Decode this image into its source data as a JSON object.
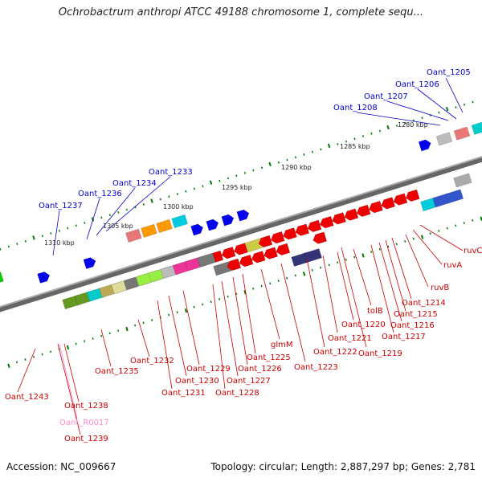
{
  "title": "Ochrobactrum anthropi ATCC 49188 chromosome 1, complete sequ...",
  "footer": {
    "accession": "Accession: NC_009667",
    "summary": "Topology: circular; Length: 2,887,297 bp; Genes: 2,781"
  },
  "colors": {
    "forward_label": "#0000cc",
    "reverse_label": "#cc0000",
    "rna_label": "#ff88cc",
    "backbone": "#888888",
    "tick": "#007700"
  },
  "ruler": {
    "unit": "kbp",
    "marks": [
      {
        "kbp": 1280,
        "label": "1280 kbp"
      },
      {
        "kbp": 1285,
        "label": "1285 kbp"
      },
      {
        "kbp": 1290,
        "label": "1290 kbp"
      },
      {
        "kbp": 1295,
        "label": "1295 kbp"
      },
      {
        "kbp": 1300,
        "label": "1300 kbp"
      },
      {
        "kbp": 1305,
        "label": "1305 kbp"
      },
      {
        "kbp": 1310,
        "label": "1310 kbp"
      }
    ]
  },
  "forward_labels": [
    {
      "name": "Oant_1205"
    },
    {
      "name": "Oant_1206"
    },
    {
      "name": "Oant_1207"
    },
    {
      "name": "Oant_1208"
    },
    {
      "name": "Oant_1233"
    },
    {
      "name": "Oant_1234"
    },
    {
      "name": "Oant_1236"
    },
    {
      "name": "Oant_1237"
    }
  ],
  "reverse_labels": [
    {
      "name": "ruvC"
    },
    {
      "name": "ruvA"
    },
    {
      "name": "ruvB"
    },
    {
      "name": "Oant_1214"
    },
    {
      "name": "Oant_1215"
    },
    {
      "name": "Oant_1216"
    },
    {
      "name": "Oant_1217"
    },
    {
      "name": "Oant_1219"
    },
    {
      "name": "tolB"
    },
    {
      "name": "Oant_1220"
    },
    {
      "name": "Oant_1221"
    },
    {
      "name": "Oant_1222"
    },
    {
      "name": "Oant_1223"
    },
    {
      "name": "glmM"
    },
    {
      "name": "Oant_1225"
    },
    {
      "name": "Oant_1226"
    },
    {
      "name": "Oant_1227"
    },
    {
      "name": "Oant_1228"
    },
    {
      "name": "Oant_1229"
    },
    {
      "name": "Oant_1230"
    },
    {
      "name": "Oant_1231"
    },
    {
      "name": "Oant_1232"
    },
    {
      "name": "Oant_1235"
    },
    {
      "name": "Oant_1243"
    },
    {
      "name": "Oant_1238"
    },
    {
      "name": "Oant_R0017",
      "rna": true
    },
    {
      "name": "Oant_1239"
    }
  ],
  "genes": [
    {
      "strand": "+",
      "row": 1,
      "color": "#00cc00",
      "kind": "block"
    },
    {
      "strand": "+",
      "row": 2,
      "color": "#0000ee",
      "kind": "arrow"
    },
    {
      "strand": "+",
      "row": 2,
      "color": "#0000ee",
      "kind": "arrow"
    },
    {
      "strand": "+",
      "row": 1,
      "color": "#e87878",
      "kind": "block"
    },
    {
      "strand": "+",
      "row": 1,
      "color": "#ff9900",
      "kind": "block"
    },
    {
      "strand": "+",
      "row": 1,
      "color": "#ff9900",
      "kind": "block"
    },
    {
      "strand": "+",
      "row": 1,
      "color": "#00ccdd",
      "kind": "block"
    },
    {
      "strand": "+",
      "row": 2,
      "color": "#0000ee",
      "kind": "arrow"
    },
    {
      "strand": "+",
      "row": 2,
      "color": "#0000ee",
      "kind": "arrow"
    },
    {
      "strand": "+",
      "row": 2,
      "color": "#0000ee",
      "kind": "arrow"
    },
    {
      "strand": "+",
      "row": 2,
      "color": "#0000ee",
      "kind": "arrow"
    },
    {
      "strand": "+",
      "row": 1,
      "color": "#0000ee",
      "kind": "arrow"
    },
    {
      "strand": "+",
      "row": 1,
      "color": "#bbbbbb",
      "kind": "block"
    },
    {
      "strand": "+",
      "row": 1,
      "color": "#e87878",
      "kind": "block"
    },
    {
      "strand": "+",
      "row": 1,
      "color": "#00cccc",
      "kind": "block"
    },
    {
      "strand": "+",
      "row": 1,
      "color": "#0000ee",
      "kind": "arrow"
    },
    {
      "strand": "+",
      "row": 2,
      "color": "#0000ee",
      "kind": "arrow"
    },
    {
      "strand": "+",
      "row": 2,
      "color": "#0000ee",
      "kind": "arrow"
    },
    {
      "strand": "-",
      "row": 1,
      "color": "#ee0000",
      "kind": "arrow"
    },
    {
      "strand": "-",
      "row": 1,
      "color": "#ee0000",
      "kind": "arrow"
    },
    {
      "strand": "-",
      "row": 1,
      "color": "#ee0000",
      "kind": "arrow"
    },
    {
      "strand": "-",
      "row": 1,
      "color": "#ee0000",
      "kind": "arrow"
    },
    {
      "strand": "-",
      "row": 1,
      "color": "#ee0000",
      "kind": "arrow"
    },
    {
      "strand": "-",
      "row": 1,
      "color": "#ee0000",
      "kind": "arrow"
    },
    {
      "strand": "-",
      "row": 1,
      "color": "#ee0000",
      "kind": "arrow"
    },
    {
      "strand": "-",
      "row": 1,
      "color": "#ee0000",
      "kind": "arrow"
    },
    {
      "strand": "-",
      "row": 1,
      "color": "#ee0000",
      "kind": "arrow"
    },
    {
      "strand": "-",
      "row": 1,
      "color": "#ee0000",
      "kind": "arrow"
    },
    {
      "strand": "-",
      "row": 1,
      "color": "#ee0000",
      "kind": "arrow"
    },
    {
      "strand": "-",
      "row": 1,
      "color": "#cccc44",
      "kind": "block"
    },
    {
      "strand": "-",
      "row": 1,
      "color": "#ee0000",
      "kind": "arrow"
    },
    {
      "strand": "-",
      "row": 1,
      "color": "#ee0000",
      "kind": "arrow"
    },
    {
      "strand": "-",
      "row": 1,
      "color": "#ee0000",
      "kind": "arrow"
    },
    {
      "strand": "-",
      "row": 1,
      "color": "#ee0000",
      "kind": "arrow"
    },
    {
      "strand": "-",
      "row": 1,
      "color": "#ee0000",
      "kind": "arrow"
    },
    {
      "strand": "-",
      "row": 1,
      "color": "#ee0000",
      "kind": "arrow"
    },
    {
      "strand": "-",
      "row": 1,
      "color": "#ee0000",
      "kind": "arrow"
    },
    {
      "strand": "-",
      "row": 1,
      "color": "#ee0000",
      "kind": "arrow"
    },
    {
      "strand": "-",
      "row": 1,
      "color": "#ee0000",
      "kind": "arrow"
    },
    {
      "strand": "-",
      "row": 1,
      "color": "#ee0000",
      "kind": "arrow"
    },
    {
      "strand": "-",
      "row": 1,
      "color": "#ee0000",
      "kind": "arrow"
    },
    {
      "strand": "-",
      "row": 1,
      "color": "#ee0000",
      "kind": "arrow"
    },
    {
      "strand": "-",
      "row": 1,
      "color": "#ee0000",
      "kind": "arrow"
    },
    {
      "strand": "-",
      "row": 2,
      "color": "#00ccdd",
      "kind": "block"
    },
    {
      "strand": "-",
      "row": 2,
      "color": "#3355cc",
      "kind": "block"
    },
    {
      "strand": "-",
      "row": 2,
      "color": "#3355cc",
      "kind": "block"
    },
    {
      "strand": "-",
      "row": 1,
      "color": "#aaaaaa",
      "kind": "block"
    },
    {
      "strand": "-",
      "row": 1,
      "color": "#669922",
      "kind": "block"
    },
    {
      "strand": "-",
      "row": 1,
      "color": "#669922",
      "kind": "block"
    },
    {
      "strand": "-",
      "row": 1,
      "color": "#00cccc",
      "kind": "block"
    },
    {
      "strand": "-",
      "row": 1,
      "color": "#bbaa55",
      "kind": "block"
    },
    {
      "strand": "-",
      "row": 1,
      "color": "#dddd99",
      "kind": "block"
    },
    {
      "strand": "-",
      "row": 1,
      "color": "#777777",
      "kind": "block"
    },
    {
      "strand": "-",
      "row": 1,
      "color": "#99ee44",
      "kind": "block"
    },
    {
      "strand": "-",
      "row": 1,
      "color": "#99ee44",
      "kind": "block"
    },
    {
      "strand": "-",
      "row": 1,
      "color": "#bbbbbb",
      "kind": "block"
    },
    {
      "strand": "-",
      "row": 1,
      "color": "#ee3399",
      "kind": "block"
    },
    {
      "strand": "-",
      "row": 1,
      "color": "#ee3399",
      "kind": "block"
    },
    {
      "strand": "-",
      "row": 1,
      "color": "#777777",
      "kind": "block"
    },
    {
      "strand": "-",
      "row": 2,
      "color": "#777777",
      "kind": "block"
    },
    {
      "strand": "-",
      "row": 2,
      "color": "#ee0000",
      "kind": "arrow"
    },
    {
      "strand": "-",
      "row": 2,
      "color": "#ee0000",
      "kind": "arrow"
    },
    {
      "strand": "-",
      "row": 2,
      "color": "#ee0000",
      "kind": "arrow"
    },
    {
      "strand": "-",
      "row": 2,
      "color": "#ee0000",
      "kind": "arrow"
    },
    {
      "strand": "-",
      "row": 2,
      "color": "#ee0000",
      "kind": "arrow"
    },
    {
      "strand": "-",
      "row": 3,
      "color": "#333377",
      "kind": "block"
    },
    {
      "strand": "-",
      "row": 3,
      "color": "#333377",
      "kind": "block"
    },
    {
      "strand": "-",
      "row": 2,
      "color": "#ee0000",
      "kind": "arrow"
    }
  ]
}
